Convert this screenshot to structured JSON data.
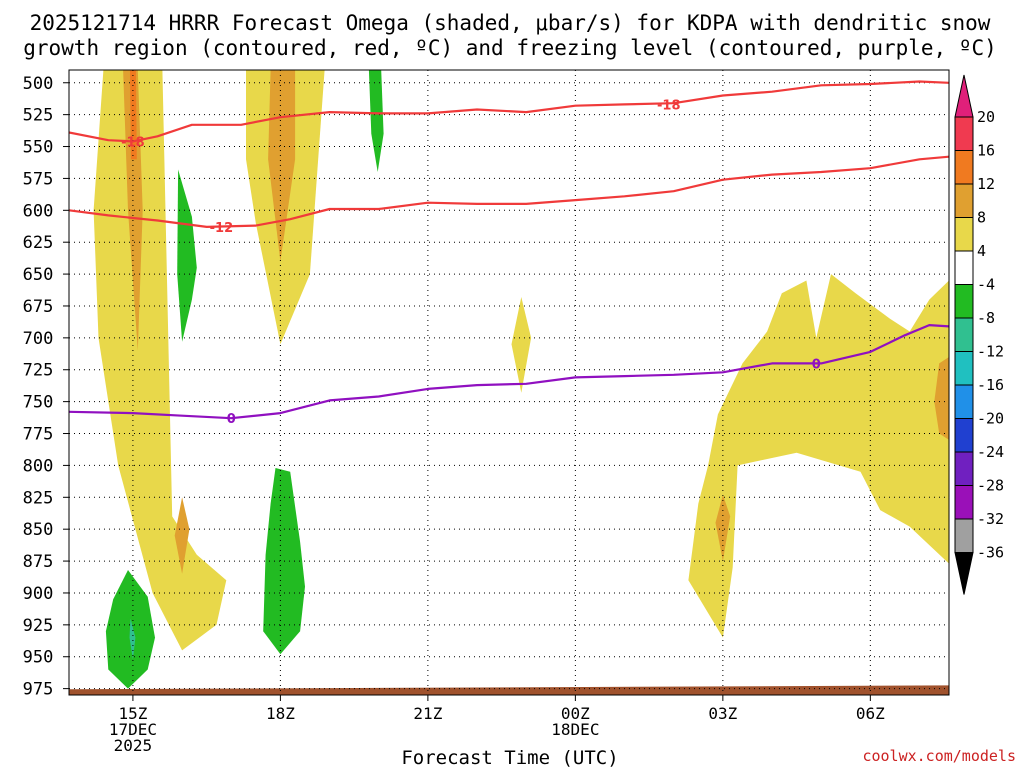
{
  "chart_data": {
    "type": "heatmap",
    "title_line1": "2025121714 HRRR Forecast Omega (shaded, μbar/s) for KDPA with dendritic snow",
    "title_line2": "growth region (contoured, red, ºC) and freezing level (contoured, purple, ºC)",
    "xlabel": "Forecast Time (UTC)",
    "credit": "coolwx.com/models",
    "xlim_hours": [
      13.7,
      31.6
    ],
    "ylim_mb": [
      980,
      490
    ],
    "y_ticks": [
      "500",
      "525",
      "550",
      "575",
      "600",
      "625",
      "650",
      "675",
      "700",
      "725",
      "750",
      "775",
      "800",
      "825",
      "850",
      "875",
      "900",
      "925",
      "950",
      "975"
    ],
    "x_ticks": [
      {
        "hour": 15,
        "lines": [
          "15Z",
          "17DEC",
          "2025"
        ]
      },
      {
        "hour": 18,
        "lines": [
          "18Z"
        ]
      },
      {
        "hour": 21,
        "lines": [
          "21Z"
        ]
      },
      {
        "hour": 24,
        "lines": [
          "00Z",
          "18DEC"
        ]
      },
      {
        "hour": 27,
        "lines": [
          "03Z"
        ]
      },
      {
        "hour": 30,
        "lines": [
          "06Z"
        ]
      }
    ],
    "colorbar": {
      "levels": [
        "20",
        "16",
        "12",
        "8",
        "4",
        "-4",
        "-8",
        "-12",
        "-16",
        "-20",
        "-24",
        "-28",
        "-32",
        "-36"
      ],
      "colors": [
        "#f03a50",
        "#f07a20",
        "#e0a030",
        "#e8d84a",
        "#ffffff",
        "#22bb22",
        "#30c090",
        "#20c0c0",
        "#2090e8",
        "#2040d0",
        "#7020c0",
        "#9a10b8",
        "#a0a0a0"
      ],
      "top_triangle": "#e0207a",
      "bottom_triangle": "#000000"
    },
    "omega_regions": [
      {
        "name": "omega-yellow-early-column",
        "level": 4,
        "pts": [
          [
            14.4,
            490
          ],
          [
            15.6,
            490
          ],
          [
            15.8,
            840
          ],
          [
            16.3,
            870
          ],
          [
            16.9,
            890
          ],
          [
            16.7,
            925
          ],
          [
            16.0,
            945
          ],
          [
            15.4,
            900
          ],
          [
            14.7,
            800
          ],
          [
            14.3,
            700
          ],
          [
            14.2,
            600
          ]
        ]
      },
      {
        "name": "omega-orange-early-column",
        "level": 8,
        "pts": [
          [
            14.8,
            490
          ],
          [
            15.1,
            490
          ],
          [
            15.2,
            600
          ],
          [
            15.1,
            710
          ],
          [
            14.9,
            600
          ]
        ]
      },
      {
        "name": "omega-red-early-column",
        "level": 12,
        "pts": [
          [
            14.94,
            490
          ],
          [
            15.06,
            490
          ],
          [
            15.08,
            560
          ],
          [
            14.96,
            560
          ]
        ]
      },
      {
        "name": "omega-orange-small-845",
        "level": 8,
        "pts": [
          [
            16.0,
            825
          ],
          [
            16.15,
            850
          ],
          [
            16.0,
            885
          ],
          [
            15.85,
            855
          ]
        ]
      },
      {
        "name": "omega-yellow-18z-column",
        "level": 4,
        "pts": [
          [
            17.3,
            490
          ],
          [
            18.9,
            490
          ],
          [
            18.6,
            650
          ],
          [
            18.0,
            705
          ],
          [
            17.5,
            610
          ],
          [
            17.3,
            560
          ]
        ]
      },
      {
        "name": "omega-orange-18z-column",
        "level": 8,
        "pts": [
          [
            17.8,
            490
          ],
          [
            18.3,
            490
          ],
          [
            18.3,
            560
          ],
          [
            18.0,
            640
          ],
          [
            17.75,
            560
          ]
        ]
      },
      {
        "name": "omega-yellow-small-2230",
        "level": 4,
        "pts": [
          [
            22.9,
            668
          ],
          [
            23.1,
            700
          ],
          [
            22.9,
            743
          ],
          [
            22.7,
            705
          ]
        ]
      },
      {
        "name": "omega-yellow-late-region",
        "level": 4,
        "pts": [
          [
            26.4,
            860
          ],
          [
            26.3,
            890
          ],
          [
            27.0,
            935
          ],
          [
            27.2,
            880
          ],
          [
            27.3,
            800
          ],
          [
            28.5,
            790
          ],
          [
            29.8,
            805
          ],
          [
            30.2,
            835
          ],
          [
            30.8,
            848
          ],
          [
            31.6,
            877
          ],
          [
            31.6,
            655
          ],
          [
            31.2,
            670
          ],
          [
            30.8,
            695
          ],
          [
            30.4,
            685
          ],
          [
            29.7,
            665
          ],
          [
            29.2,
            650
          ],
          [
            28.9,
            700
          ],
          [
            28.7,
            655
          ],
          [
            28.2,
            665
          ],
          [
            27.9,
            695
          ],
          [
            27.4,
            720
          ],
          [
            26.9,
            760
          ],
          [
            26.7,
            800
          ],
          [
            26.5,
            830
          ]
        ]
      },
      {
        "name": "omega-orange-late-right",
        "level": 8,
        "pts": [
          [
            31.4,
            720
          ],
          [
            31.6,
            715
          ],
          [
            31.6,
            780
          ],
          [
            31.4,
            775
          ],
          [
            31.3,
            750
          ]
        ]
      },
      {
        "name": "omega-orange-small-0300",
        "level": 8,
        "pts": [
          [
            27.0,
            823
          ],
          [
            27.15,
            840
          ],
          [
            27.0,
            875
          ],
          [
            26.85,
            845
          ]
        ]
      },
      {
        "name": "omega-green-early-low",
        "level": -4,
        "pts": [
          [
            14.9,
            882
          ],
          [
            15.3,
            903
          ],
          [
            15.45,
            935
          ],
          [
            15.3,
            960
          ],
          [
            14.9,
            975
          ],
          [
            14.5,
            960
          ],
          [
            14.45,
            930
          ],
          [
            14.6,
            905
          ]
        ]
      },
      {
        "name": "omega-teal-early-low",
        "level": -8,
        "pts": [
          [
            14.95,
            920
          ],
          [
            15.05,
            935
          ],
          [
            15.0,
            952
          ],
          [
            14.93,
            935
          ]
        ]
      },
      {
        "name": "omega-green-1600-column",
        "level": -4,
        "pts": [
          [
            15.92,
            568
          ],
          [
            16.2,
            605
          ],
          [
            16.3,
            645
          ],
          [
            16.2,
            670
          ],
          [
            16.0,
            703
          ],
          [
            15.9,
            650
          ]
        ]
      },
      {
        "name": "omega-green-18z-low",
        "level": -4,
        "pts": [
          [
            17.9,
            802
          ],
          [
            18.2,
            805
          ],
          [
            18.4,
            860
          ],
          [
            18.5,
            895
          ],
          [
            18.4,
            930
          ],
          [
            18.0,
            948
          ],
          [
            17.65,
            930
          ],
          [
            17.7,
            870
          ],
          [
            17.8,
            830
          ]
        ]
      },
      {
        "name": "omega-green-2000-column",
        "level": -4,
        "pts": [
          [
            19.8,
            490
          ],
          [
            20.05,
            490
          ],
          [
            20.1,
            540
          ],
          [
            19.98,
            570
          ],
          [
            19.85,
            540
          ]
        ]
      }
    ],
    "surface_band": {
      "name": "terrain-surface",
      "color": "#a0522d",
      "top_mb_left": 975.5,
      "top_mb_right": 972.5,
      "bottom_mb": 980
    },
    "contours": [
      {
        "name": "dgz-contour-minus18",
        "color": "#f03a3a",
        "label": "-18",
        "pts": [
          [
            13.7,
            539
          ],
          [
            14.5,
            545
          ],
          [
            15.0,
            546
          ],
          [
            15.5,
            542
          ],
          [
            16.2,
            533
          ],
          [
            17.2,
            533
          ],
          [
            18.0,
            527
          ],
          [
            19.0,
            523
          ],
          [
            20.0,
            524
          ],
          [
            21.0,
            524
          ],
          [
            22.0,
            521
          ],
          [
            23.0,
            523
          ],
          [
            24.0,
            518
          ],
          [
            25.0,
            517
          ],
          [
            26.0,
            516
          ],
          [
            27.0,
            510
          ],
          [
            28.0,
            507
          ],
          [
            29.0,
            502
          ],
          [
            30.0,
            501
          ],
          [
            31.0,
            499
          ],
          [
            31.6,
            500
          ]
        ],
        "label_positions": [
          [
            15.0,
            546
          ],
          [
            25.9,
            517
          ]
        ]
      },
      {
        "name": "dgz-contour-minus12",
        "color": "#f03a3a",
        "label": "-12",
        "pts": [
          [
            13.7,
            600
          ],
          [
            14.5,
            604
          ],
          [
            15.5,
            608
          ],
          [
            16.5,
            613
          ],
          [
            17.5,
            612
          ],
          [
            18.2,
            607
          ],
          [
            19.0,
            599
          ],
          [
            20.0,
            599
          ],
          [
            21.0,
            594
          ],
          [
            22.0,
            595
          ],
          [
            23.0,
            595
          ],
          [
            24.0,
            592
          ],
          [
            25.0,
            589
          ],
          [
            26.0,
            585
          ],
          [
            27.0,
            576
          ],
          [
            28.0,
            572
          ],
          [
            29.0,
            570
          ],
          [
            30.0,
            567
          ],
          [
            31.0,
            560
          ],
          [
            31.6,
            558
          ]
        ],
        "label_positions": [
          [
            16.8,
            613
          ]
        ]
      },
      {
        "name": "freezing-level-0",
        "color": "#9010c0",
        "label": "0",
        "pts": [
          [
            13.7,
            758
          ],
          [
            15.0,
            759
          ],
          [
            16.0,
            761
          ],
          [
            17.0,
            763
          ],
          [
            18.0,
            759
          ],
          [
            19.0,
            749
          ],
          [
            20.0,
            746
          ],
          [
            21.0,
            740
          ],
          [
            22.0,
            737
          ],
          [
            23.0,
            736
          ],
          [
            24.0,
            731
          ],
          [
            25.0,
            730
          ],
          [
            26.0,
            729
          ],
          [
            27.0,
            727
          ],
          [
            28.0,
            720
          ],
          [
            29.0,
            720
          ],
          [
            30.0,
            711
          ],
          [
            30.7,
            698
          ],
          [
            31.2,
            690
          ],
          [
            31.6,
            691
          ]
        ],
        "label_positions": [
          [
            17.0,
            763
          ],
          [
            28.9,
            720
          ]
        ]
      }
    ]
  }
}
